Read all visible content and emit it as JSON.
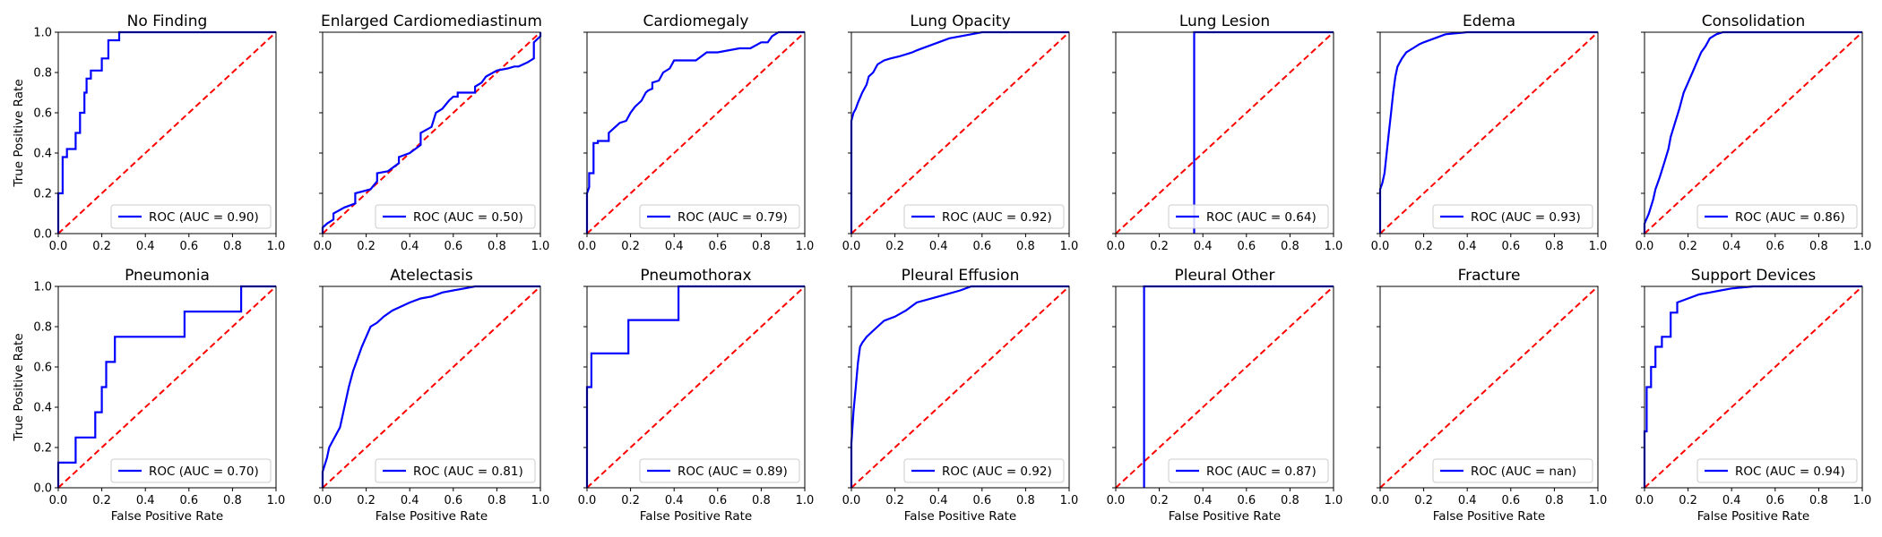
{
  "figure": {
    "x_tick_labels": [
      "0.0",
      "0.2",
      "0.4",
      "0.6",
      "0.8",
      "1.0"
    ],
    "y_tick_labels": [
      "0.0",
      "0.2",
      "0.4",
      "0.6",
      "0.8",
      "1.0"
    ]
  },
  "colors": {
    "roc": "#0000ff",
    "diagonal": "#ff0000",
    "axes": "#000000"
  },
  "chart_data": [
    {
      "type": "line",
      "title": "No Finding",
      "xlabel": "",
      "ylabel": "True Positive Rate",
      "xlim": [
        0,
        1
      ],
      "ylim": [
        0,
        1
      ],
      "legend": "ROC (AUC = 0.90)",
      "legend_position": "lower-right",
      "series": [
        {
          "name": "ROC (AUC = 0.90)",
          "x": [
            0,
            0,
            0.02,
            0.02,
            0.04,
            0.04,
            0.08,
            0.08,
            0.1,
            0.1,
            0.12,
            0.12,
            0.13,
            0.13,
            0.15,
            0.15,
            0.2,
            0.2,
            0.23,
            0.23,
            0.28,
            0.28,
            1
          ],
          "y": [
            0,
            0.2,
            0.2,
            0.38,
            0.38,
            0.42,
            0.42,
            0.5,
            0.5,
            0.6,
            0.6,
            0.7,
            0.7,
            0.77,
            0.77,
            0.81,
            0.81,
            0.87,
            0.87,
            0.96,
            0.96,
            1,
            1
          ]
        }
      ]
    },
    {
      "type": "line",
      "title": "Enlarged Cardiomediastinum",
      "xlabel": "",
      "ylabel": "",
      "xlim": [
        0,
        1
      ],
      "ylim": [
        0,
        1
      ],
      "legend": "ROC (AUC = 0.50)",
      "legend_position": "lower-right",
      "series": [
        {
          "name": "ROC (AUC = 0.50)",
          "x": [
            0,
            0,
            0.02,
            0.05,
            0.05,
            0.1,
            0.15,
            0.15,
            0.22,
            0.25,
            0.25,
            0.3,
            0.35,
            0.35,
            0.4,
            0.45,
            0.45,
            0.5,
            0.52,
            0.55,
            0.58,
            0.6,
            0.62,
            0.62,
            0.7,
            0.7,
            0.73,
            0.75,
            0.8,
            0.85,
            0.88,
            0.9,
            0.94,
            0.97,
            0.97,
            1,
            1
          ],
          "y": [
            0,
            0.03,
            0.05,
            0.07,
            0.1,
            0.13,
            0.15,
            0.2,
            0.22,
            0.26,
            0.3,
            0.31,
            0.35,
            0.38,
            0.4,
            0.44,
            0.5,
            0.53,
            0.6,
            0.62,
            0.66,
            0.68,
            0.68,
            0.7,
            0.7,
            0.73,
            0.75,
            0.78,
            0.81,
            0.82,
            0.83,
            0.83,
            0.85,
            0.87,
            0.95,
            0.98,
            1
          ]
        }
      ]
    },
    {
      "type": "line",
      "title": "Cardiomegaly",
      "xlabel": "",
      "ylabel": "",
      "xlim": [
        0,
        1
      ],
      "ylim": [
        0,
        1
      ],
      "legend": "ROC (AUC = 0.79)",
      "legend_position": "lower-right",
      "series": [
        {
          "name": "ROC (AUC = 0.79)",
          "x": [
            0,
            0,
            0.01,
            0.01,
            0.03,
            0.03,
            0.05,
            0.05,
            0.1,
            0.1,
            0.13,
            0.15,
            0.18,
            0.2,
            0.22,
            0.25,
            0.27,
            0.28,
            0.3,
            0.3,
            0.33,
            0.35,
            0.38,
            0.4,
            0.42,
            0.45,
            0.5,
            0.55,
            0.55,
            0.6,
            0.7,
            0.75,
            0.8,
            0.83,
            0.85,
            0.88,
            1
          ],
          "y": [
            0,
            0.2,
            0.23,
            0.3,
            0.3,
            0.45,
            0.45,
            0.46,
            0.46,
            0.5,
            0.53,
            0.55,
            0.56,
            0.6,
            0.63,
            0.66,
            0.7,
            0.71,
            0.72,
            0.75,
            0.76,
            0.8,
            0.82,
            0.86,
            0.86,
            0.86,
            0.86,
            0.9,
            0.9,
            0.9,
            0.92,
            0.92,
            0.95,
            0.95,
            0.98,
            1,
            1
          ]
        }
      ]
    },
    {
      "type": "line",
      "title": "Lung Opacity",
      "xlabel": "",
      "ylabel": "",
      "xlim": [
        0,
        1
      ],
      "ylim": [
        0,
        1
      ],
      "legend": "ROC (AUC = 0.92)",
      "legend_position": "lower-right",
      "series": [
        {
          "name": "ROC (AUC = 0.92)",
          "x": [
            0,
            0,
            0.01,
            0.02,
            0.03,
            0.05,
            0.07,
            0.08,
            0.1,
            0.12,
            0.15,
            0.18,
            0.22,
            0.28,
            0.3,
            0.35,
            0.4,
            0.45,
            0.55,
            0.6,
            0.75,
            1
          ],
          "y": [
            0,
            0.56,
            0.6,
            0.62,
            0.65,
            0.7,
            0.74,
            0.78,
            0.8,
            0.84,
            0.86,
            0.87,
            0.88,
            0.9,
            0.91,
            0.93,
            0.95,
            0.97,
            0.99,
            1,
            1,
            1
          ]
        }
      ]
    },
    {
      "type": "line",
      "title": "Lung Lesion",
      "xlabel": "",
      "ylabel": "",
      "xlim": [
        0,
        1
      ],
      "ylim": [
        0,
        1
      ],
      "legend": "ROC (AUC = 0.64)",
      "legend_position": "lower-right",
      "series": [
        {
          "name": "ROC (AUC = 0.64)",
          "x": [
            0.36,
            0.36,
            1
          ],
          "y": [
            0,
            1,
            1
          ]
        }
      ]
    },
    {
      "type": "line",
      "title": "Edema",
      "xlabel": "",
      "ylabel": "",
      "xlim": [
        0,
        1
      ],
      "ylim": [
        0,
        1
      ],
      "legend": "ROC (AUC = 0.93)",
      "legend_position": "lower-right",
      "series": [
        {
          "name": "ROC (AUC = 0.93)",
          "x": [
            0,
            0,
            0.01,
            0.02,
            0.03,
            0.04,
            0.05,
            0.06,
            0.07,
            0.08,
            0.1,
            0.12,
            0.15,
            0.18,
            0.2,
            0.25,
            0.3,
            0.4,
            1
          ],
          "y": [
            0,
            0.22,
            0.25,
            0.3,
            0.4,
            0.5,
            0.6,
            0.7,
            0.78,
            0.83,
            0.87,
            0.9,
            0.92,
            0.94,
            0.95,
            0.97,
            0.99,
            1,
            1
          ]
        }
      ]
    },
    {
      "type": "line",
      "title": "Consolidation",
      "xlabel": "",
      "ylabel": "",
      "xlim": [
        0,
        1
      ],
      "ylim": [
        0,
        1
      ],
      "legend": "ROC (AUC = 0.86)",
      "legend_position": "lower-right",
      "series": [
        {
          "name": "ROC (AUC = 0.86)",
          "x": [
            0,
            0,
            0.02,
            0.04,
            0.05,
            0.07,
            0.09,
            0.11,
            0.12,
            0.14,
            0.16,
            0.18,
            0.2,
            0.22,
            0.24,
            0.26,
            0.28,
            0.3,
            0.33,
            0.36,
            1
          ],
          "y": [
            0,
            0.05,
            0.1,
            0.17,
            0.22,
            0.28,
            0.35,
            0.42,
            0.48,
            0.55,
            0.62,
            0.7,
            0.75,
            0.8,
            0.85,
            0.9,
            0.93,
            0.97,
            0.99,
            1,
            1
          ]
        }
      ]
    },
    {
      "type": "line",
      "title": "Pneumonia",
      "xlabel": "False Positive Rate",
      "ylabel": "True Positive Rate",
      "xlim": [
        0,
        1
      ],
      "ylim": [
        0,
        1
      ],
      "legend": "ROC (AUC = 0.70)",
      "legend_position": "lower-right",
      "series": [
        {
          "name": "ROC (AUC = 0.70)",
          "x": [
            0,
            0,
            0.08,
            0.08,
            0.17,
            0.17,
            0.2,
            0.2,
            0.22,
            0.22,
            0.26,
            0.26,
            0.58,
            0.58,
            0.84,
            0.84,
            1
          ],
          "y": [
            0,
            0.125,
            0.125,
            0.25,
            0.25,
            0.375,
            0.375,
            0.5,
            0.5,
            0.625,
            0.625,
            0.75,
            0.75,
            0.875,
            0.875,
            1,
            1
          ]
        }
      ]
    },
    {
      "type": "line",
      "title": "Atelectasis",
      "xlabel": "False Positive Rate",
      "ylabel": "",
      "xlim": [
        0,
        1
      ],
      "ylim": [
        0,
        1
      ],
      "legend": "ROC (AUC = 0.81)",
      "legend_position": "lower-right",
      "series": [
        {
          "name": "ROC (AUC = 0.81)",
          "x": [
            0,
            0,
            0.02,
            0.03,
            0.05,
            0.08,
            0.1,
            0.12,
            0.14,
            0.16,
            0.18,
            0.2,
            0.22,
            0.25,
            0.28,
            0.32,
            0.36,
            0.4,
            0.45,
            0.5,
            0.55,
            0.6,
            0.65,
            0.7,
            0.75,
            1
          ],
          "y": [
            0,
            0.08,
            0.15,
            0.2,
            0.24,
            0.3,
            0.4,
            0.5,
            0.58,
            0.64,
            0.7,
            0.75,
            0.8,
            0.82,
            0.85,
            0.88,
            0.9,
            0.92,
            0.94,
            0.95,
            0.97,
            0.98,
            0.99,
            1,
            1,
            1
          ]
        }
      ]
    },
    {
      "type": "line",
      "title": "Pneumothorax",
      "xlabel": "False Positive Rate",
      "ylabel": "",
      "xlim": [
        0,
        1
      ],
      "ylim": [
        0,
        1
      ],
      "legend": "ROC (AUC = 0.89)",
      "legend_position": "lower-right",
      "series": [
        {
          "name": "ROC (AUC = 0.89)",
          "x": [
            0,
            0,
            0.02,
            0.02,
            0.19,
            0.19,
            0.42,
            0.42,
            1
          ],
          "y": [
            0,
            0.5,
            0.5,
            0.667,
            0.667,
            0.833,
            0.833,
            1,
            1
          ]
        }
      ]
    },
    {
      "type": "line",
      "title": "Pleural Effusion",
      "xlabel": "False Positive Rate",
      "ylabel": "",
      "xlim": [
        0,
        1
      ],
      "ylim": [
        0,
        1
      ],
      "legend": "ROC (AUC = 0.92)",
      "legend_position": "lower-right",
      "series": [
        {
          "name": "ROC (AUC = 0.92)",
          "x": [
            0,
            0,
            0.01,
            0.02,
            0.03,
            0.04,
            0.05,
            0.07,
            0.1,
            0.12,
            0.15,
            0.2,
            0.25,
            0.3,
            0.4,
            0.5,
            0.55,
            1
          ],
          "y": [
            0,
            0.22,
            0.38,
            0.5,
            0.62,
            0.7,
            0.72,
            0.75,
            0.78,
            0.8,
            0.83,
            0.85,
            0.88,
            0.92,
            0.95,
            0.98,
            1,
            1
          ]
        }
      ]
    },
    {
      "type": "line",
      "title": "Pleural Other",
      "xlabel": "False Positive Rate",
      "ylabel": "",
      "xlim": [
        0,
        1
      ],
      "ylim": [
        0,
        1
      ],
      "legend": "ROC (AUC = 0.87)",
      "legend_position": "lower-right",
      "series": [
        {
          "name": "ROC (AUC = 0.87)",
          "x": [
            0.13,
            0.13,
            1
          ],
          "y": [
            0,
            1,
            1
          ]
        }
      ]
    },
    {
      "type": "line",
      "title": "Fracture",
      "xlabel": "False Positive Rate",
      "ylabel": "",
      "xlim": [
        0,
        1
      ],
      "ylim": [
        0,
        1
      ],
      "legend": "ROC (AUC = nan)",
      "legend_position": "lower-right",
      "series": [
        {
          "name": "ROC (AUC = nan)",
          "x": [],
          "y": []
        }
      ]
    },
    {
      "type": "line",
      "title": "Support Devices",
      "xlabel": "False Positive Rate",
      "ylabel": "",
      "xlim": [
        0,
        1
      ],
      "ylim": [
        0,
        1
      ],
      "legend": "ROC (AUC = 0.94)",
      "legend_position": "lower-right",
      "series": [
        {
          "name": "ROC (AUC = 0.94)",
          "x": [
            0,
            0,
            0.01,
            0.01,
            0.03,
            0.03,
            0.05,
            0.05,
            0.08,
            0.08,
            0.12,
            0.12,
            0.15,
            0.15,
            0.2,
            0.25,
            0.3,
            0.35,
            0.4,
            0.5,
            1
          ],
          "y": [
            0,
            0.28,
            0.28,
            0.5,
            0.5,
            0.6,
            0.6,
            0.7,
            0.7,
            0.75,
            0.75,
            0.87,
            0.87,
            0.92,
            0.94,
            0.96,
            0.97,
            0.98,
            0.99,
            1,
            1
          ]
        }
      ]
    }
  ]
}
